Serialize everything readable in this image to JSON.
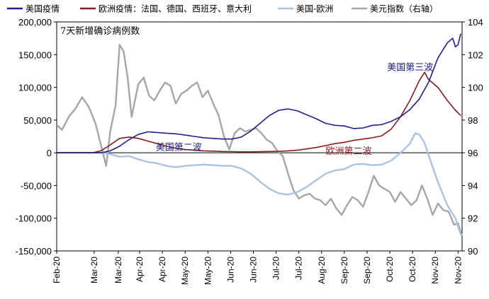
{
  "chart_data": {
    "type": "line",
    "title": "",
    "subtitle": "7天新增确诊病例数",
    "legend": {
      "placement": "top",
      "items": [
        {
          "label": "美国疫情",
          "color": "#1F1F8F",
          "style": "line"
        },
        {
          "label": "欧洲疫情：法国、德国、西班牙、意大利",
          "color": "#8B1A1A",
          "style": "line"
        },
        {
          "label": "美国-欧洲",
          "color": "#A9C4E2",
          "style": "line"
        },
        {
          "label": "美元指数（右轴）",
          "color": "#A6A6A6",
          "style": "line"
        }
      ]
    },
    "y_left": {
      "min": -150000,
      "max": 200000,
      "ticks": [
        -150000,
        -100000,
        -50000,
        0,
        50000,
        100000,
        150000,
        200000
      ],
      "tick_labels": [
        "-150,000",
        "-100,000",
        "-50,000",
        "0",
        "50,000",
        "100,000",
        "150,000",
        "200,000"
      ]
    },
    "y_right": {
      "min": 90,
      "max": 104,
      "ticks": [
        90,
        92,
        94,
        96,
        98,
        100,
        102,
        104
      ],
      "tick_labels": [
        "90",
        "92",
        "94",
        "96",
        "98",
        "100",
        "102",
        "104"
      ]
    },
    "x_range": [
      "2020-02-01",
      "2020-11-30"
    ],
    "x_ticks": [
      {
        "date": "2020-02-01",
        "label": "Feb-20"
      },
      {
        "date": "2020-02-29",
        "label": "Mar-20"
      },
      {
        "date": "2020-03-18",
        "label": "Mar-20"
      },
      {
        "date": "2020-04-03",
        "label": "Apr-20"
      },
      {
        "date": "2020-04-20",
        "label": "Apr-20"
      },
      {
        "date": "2020-05-07",
        "label": "May-20"
      },
      {
        "date": "2020-05-24",
        "label": "May-20"
      },
      {
        "date": "2020-06-10",
        "label": "Jun-20"
      },
      {
        "date": "2020-06-27",
        "label": "Jun-20"
      },
      {
        "date": "2020-07-14",
        "label": "Jul-20"
      },
      {
        "date": "2020-07-31",
        "label": "Jul-20"
      },
      {
        "date": "2020-08-17",
        "label": "Aug-20"
      },
      {
        "date": "2020-09-03",
        "label": "Sep-20"
      },
      {
        "date": "2020-09-20",
        "label": "Sep-20"
      },
      {
        "date": "2020-10-07",
        "label": "Oct-20"
      },
      {
        "date": "2020-10-24",
        "label": "Oct-20"
      },
      {
        "date": "2020-11-10",
        "label": "Nov-20"
      },
      {
        "date": "2020-11-27",
        "label": "Nov-20"
      }
    ],
    "series": [
      {
        "name": "美国疫情",
        "axis": "left",
        "color": "#1F1F8F",
        "points": [
          [
            "2020-02-01",
            0
          ],
          [
            "2020-03-05",
            0
          ],
          [
            "2020-03-12",
            3000
          ],
          [
            "2020-03-19",
            10000
          ],
          [
            "2020-03-26",
            20000
          ],
          [
            "2020-04-02",
            28000
          ],
          [
            "2020-04-09",
            32000
          ],
          [
            "2020-04-16",
            31000
          ],
          [
            "2020-04-23",
            30000
          ],
          [
            "2020-04-30",
            29000
          ],
          [
            "2020-05-07",
            27000
          ],
          [
            "2020-05-14",
            25000
          ],
          [
            "2020-05-21",
            23000
          ],
          [
            "2020-05-28",
            22000
          ],
          [
            "2020-06-04",
            21000
          ],
          [
            "2020-06-11",
            21000
          ],
          [
            "2020-06-18",
            24000
          ],
          [
            "2020-06-25",
            33000
          ],
          [
            "2020-07-02",
            45000
          ],
          [
            "2020-07-09",
            57000
          ],
          [
            "2020-07-16",
            65000
          ],
          [
            "2020-07-23",
            67000
          ],
          [
            "2020-07-30",
            64000
          ],
          [
            "2020-08-06",
            58000
          ],
          [
            "2020-08-13",
            52000
          ],
          [
            "2020-08-20",
            45000
          ],
          [
            "2020-08-27",
            42000
          ],
          [
            "2020-09-03",
            41000
          ],
          [
            "2020-09-10",
            37000
          ],
          [
            "2020-09-17",
            38000
          ],
          [
            "2020-09-24",
            42000
          ],
          [
            "2020-10-01",
            43000
          ],
          [
            "2020-10-08",
            48000
          ],
          [
            "2020-10-15",
            55000
          ],
          [
            "2020-10-22",
            66000
          ],
          [
            "2020-10-29",
            82000
          ],
          [
            "2020-11-05",
            108000
          ],
          [
            "2020-11-12",
            145000
          ],
          [
            "2020-11-19",
            168000
          ],
          [
            "2020-11-23",
            175000
          ],
          [
            "2020-11-25",
            162000
          ],
          [
            "2020-11-27",
            165000
          ],
          [
            "2020-11-29",
            182000
          ]
        ]
      },
      {
        "name": "欧洲疫情：法国、德国、西班牙、意大利",
        "axis": "left",
        "color": "#8B1A1A",
        "points": [
          [
            "2020-02-01",
            0
          ],
          [
            "2020-02-28",
            0
          ],
          [
            "2020-03-05",
            3000
          ],
          [
            "2020-03-12",
            12000
          ],
          [
            "2020-03-19",
            22000
          ],
          [
            "2020-03-26",
            24000
          ],
          [
            "2020-04-02",
            22000
          ],
          [
            "2020-04-09",
            18000
          ],
          [
            "2020-04-16",
            14000
          ],
          [
            "2020-04-23",
            10000
          ],
          [
            "2020-04-30",
            7000
          ],
          [
            "2020-05-07",
            5000
          ],
          [
            "2020-05-14",
            4000
          ],
          [
            "2020-05-21",
            3000
          ],
          [
            "2020-05-28",
            2500
          ],
          [
            "2020-06-04",
            2000
          ],
          [
            "2020-06-11",
            1800
          ],
          [
            "2020-06-18",
            1500
          ],
          [
            "2020-06-25",
            1500
          ],
          [
            "2020-07-02",
            1700
          ],
          [
            "2020-07-09",
            2000
          ],
          [
            "2020-07-16",
            2200
          ],
          [
            "2020-07-23",
            3000
          ],
          [
            "2020-07-30",
            4000
          ],
          [
            "2020-08-06",
            6000
          ],
          [
            "2020-08-13",
            8000
          ],
          [
            "2020-08-20",
            11000
          ],
          [
            "2020-08-27",
            14000
          ],
          [
            "2020-09-03",
            16000
          ],
          [
            "2020-09-10",
            19000
          ],
          [
            "2020-09-17",
            21000
          ],
          [
            "2020-09-24",
            23000
          ],
          [
            "2020-10-01",
            26000
          ],
          [
            "2020-10-08",
            36000
          ],
          [
            "2020-10-15",
            55000
          ],
          [
            "2020-10-22",
            80000
          ],
          [
            "2020-10-29",
            110000
          ],
          [
            "2020-11-02",
            123000
          ],
          [
            "2020-11-05",
            112000
          ],
          [
            "2020-11-12",
            100000
          ],
          [
            "2020-11-19",
            80000
          ],
          [
            "2020-11-25",
            65000
          ],
          [
            "2020-11-29",
            57000
          ]
        ]
      },
      {
        "name": "美国-欧洲",
        "axis": "left",
        "color": "#A9C4E2",
        "points": [
          [
            "2020-02-01",
            0
          ],
          [
            "2020-03-05",
            0
          ],
          [
            "2020-03-12",
            -2000
          ],
          [
            "2020-03-19",
            -6000
          ],
          [
            "2020-03-26",
            -5000
          ],
          [
            "2020-04-02",
            -10000
          ],
          [
            "2020-04-09",
            -14000
          ],
          [
            "2020-04-16",
            -16000
          ],
          [
            "2020-04-23",
            -20000
          ],
          [
            "2020-04-30",
            -22000
          ],
          [
            "2020-05-07",
            -20000
          ],
          [
            "2020-05-14",
            -19000
          ],
          [
            "2020-05-21",
            -18000
          ],
          [
            "2020-05-28",
            -19000
          ],
          [
            "2020-06-04",
            -20000
          ],
          [
            "2020-06-11",
            -20000
          ],
          [
            "2020-06-18",
            -24000
          ],
          [
            "2020-06-25",
            -32000
          ],
          [
            "2020-07-02",
            -44000
          ],
          [
            "2020-07-09",
            -55000
          ],
          [
            "2020-07-16",
            -62000
          ],
          [
            "2020-07-23",
            -64000
          ],
          [
            "2020-07-30",
            -60000
          ],
          [
            "2020-08-06",
            -52000
          ],
          [
            "2020-08-13",
            -42000
          ],
          [
            "2020-08-20",
            -32000
          ],
          [
            "2020-08-27",
            -27000
          ],
          [
            "2020-09-03",
            -25000
          ],
          [
            "2020-09-10",
            -18000
          ],
          [
            "2020-09-17",
            -17000
          ],
          [
            "2020-09-24",
            -19000
          ],
          [
            "2020-10-01",
            -18000
          ],
          [
            "2020-10-08",
            -12000
          ],
          [
            "2020-10-15",
            0
          ],
          [
            "2020-10-22",
            14000
          ],
          [
            "2020-10-26",
            30000
          ],
          [
            "2020-10-29",
            28000
          ],
          [
            "2020-11-02",
            15000
          ],
          [
            "2020-11-05",
            -4000
          ],
          [
            "2020-11-12",
            -45000
          ],
          [
            "2020-11-19",
            -80000
          ],
          [
            "2020-11-25",
            -100000
          ],
          [
            "2020-11-29",
            -125000
          ]
        ]
      },
      {
        "name": "美元指数（右轴）",
        "axis": "right",
        "color": "#A6A6A6",
        "points": [
          [
            "2020-02-01",
            97.7
          ],
          [
            "2020-02-05",
            97.4
          ],
          [
            "2020-02-10",
            98.2
          ],
          [
            "2020-02-15",
            98.7
          ],
          [
            "2020-02-20",
            99.4
          ],
          [
            "2020-02-25",
            98.8
          ],
          [
            "2020-03-01",
            97.8
          ],
          [
            "2020-03-05",
            96.5
          ],
          [
            "2020-03-09",
            95.2
          ],
          [
            "2020-03-12",
            97.3
          ],
          [
            "2020-03-16",
            98.9
          ],
          [
            "2020-03-19",
            102.6
          ],
          [
            "2020-03-22",
            102.2
          ],
          [
            "2020-03-25",
            100.6
          ],
          [
            "2020-03-28",
            98.2
          ],
          [
            "2020-04-02",
            100.2
          ],
          [
            "2020-04-06",
            100.6
          ],
          [
            "2020-04-10",
            99.5
          ],
          [
            "2020-04-14",
            99.2
          ],
          [
            "2020-04-18",
            99.8
          ],
          [
            "2020-04-22",
            100.3
          ],
          [
            "2020-04-26",
            100.1
          ],
          [
            "2020-04-30",
            99.0
          ],
          [
            "2020-05-04",
            99.6
          ],
          [
            "2020-05-08",
            99.8
          ],
          [
            "2020-05-12",
            100.1
          ],
          [
            "2020-05-16",
            100.3
          ],
          [
            "2020-05-20",
            99.4
          ],
          [
            "2020-05-24",
            99.8
          ],
          [
            "2020-05-28",
            99.0
          ],
          [
            "2020-06-01",
            98.3
          ],
          [
            "2020-06-05",
            97.0
          ],
          [
            "2020-06-09",
            96.2
          ],
          [
            "2020-06-13",
            97.2
          ],
          [
            "2020-06-17",
            97.5
          ],
          [
            "2020-06-21",
            97.3
          ],
          [
            "2020-06-25",
            97.4
          ],
          [
            "2020-06-29",
            97.5
          ],
          [
            "2020-07-03",
            97.2
          ],
          [
            "2020-07-07",
            96.8
          ],
          [
            "2020-07-11",
            96.6
          ],
          [
            "2020-07-15",
            96.1
          ],
          [
            "2020-07-19",
            95.8
          ],
          [
            "2020-07-23",
            94.7
          ],
          [
            "2020-07-27",
            93.7
          ],
          [
            "2020-07-31",
            93.2
          ],
          [
            "2020-08-04",
            93.4
          ],
          [
            "2020-08-08",
            93.5
          ],
          [
            "2020-08-12",
            93.2
          ],
          [
            "2020-08-16",
            93.1
          ],
          [
            "2020-08-20",
            92.8
          ],
          [
            "2020-08-24",
            93.2
          ],
          [
            "2020-08-28",
            92.6
          ],
          [
            "2020-09-01",
            92.2
          ],
          [
            "2020-09-05",
            92.8
          ],
          [
            "2020-09-09",
            93.3
          ],
          [
            "2020-09-13",
            93.1
          ],
          [
            "2020-09-17",
            92.7
          ],
          [
            "2020-09-21",
            93.6
          ],
          [
            "2020-09-25",
            94.6
          ],
          [
            "2020-09-29",
            94.0
          ],
          [
            "2020-10-03",
            93.8
          ],
          [
            "2020-10-07",
            93.6
          ],
          [
            "2020-10-11",
            93.0
          ],
          [
            "2020-10-15",
            93.6
          ],
          [
            "2020-10-19",
            93.2
          ],
          [
            "2020-10-23",
            92.8
          ],
          [
            "2020-10-27",
            93.1
          ],
          [
            "2020-10-31",
            94.0
          ],
          [
            "2020-11-04",
            93.2
          ],
          [
            "2020-11-08",
            92.2
          ],
          [
            "2020-11-12",
            92.9
          ],
          [
            "2020-11-16",
            92.5
          ],
          [
            "2020-11-20",
            92.4
          ],
          [
            "2020-11-24",
            91.6
          ],
          [
            "2020-11-27",
            91.7
          ],
          [
            "2020-11-30",
            90.9
          ]
        ]
      }
    ],
    "annotations": [
      {
        "text": "美国第三波",
        "date": "2020-10-05",
        "value": 126000,
        "color": "#1F1F8F"
      },
      {
        "text": "美国第二波",
        "date": "2020-04-15",
        "value": 4000,
        "color": "#1F1F8F"
      },
      {
        "text": "欧洲第二波",
        "date": "2020-08-20",
        "value": -2000,
        "color": "#8B1A1A"
      }
    ]
  }
}
